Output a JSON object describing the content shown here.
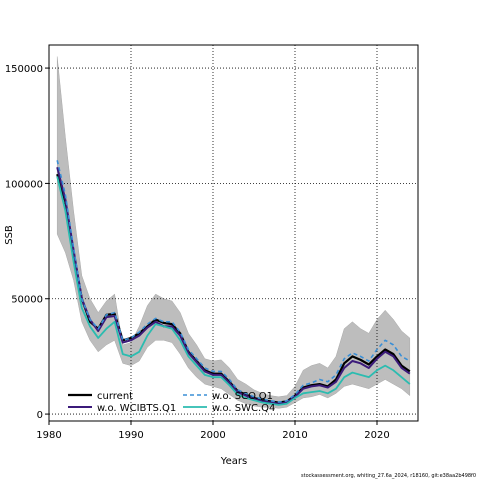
{
  "chart_data": {
    "type": "line",
    "xlabel": "Years",
    "ylabel": "SSB",
    "xlim": [
      1980,
      2025
    ],
    "ylim": [
      -3000,
      160000
    ],
    "x_ticks": [
      1980,
      1990,
      2000,
      2010,
      2020
    ],
    "y_ticks": [
      0,
      50000,
      100000,
      150000
    ],
    "y_tick_labels": [
      "0",
      "50000",
      "100000",
      "150000"
    ],
    "grid": "dotted",
    "legend_position": "bottom-left",
    "footnote": "stockassessment.org, whiting_27.6a_2024, r18160, git:e38aa2b498f0",
    "x": [
      1981,
      1982,
      1983,
      1984,
      1985,
      1986,
      1987,
      1988,
      1989,
      1990,
      1991,
      1992,
      1993,
      1994,
      1995,
      1996,
      1997,
      1998,
      1999,
      2000,
      2001,
      2002,
      2003,
      2004,
      2005,
      2006,
      2007,
      2008,
      2009,
      2010,
      2011,
      2012,
      2013,
      2014,
      2015,
      2016,
      2017,
      2018,
      2019,
      2020,
      2021,
      2022,
      2023,
      2024
    ],
    "confidence_band": {
      "color": "#bdbdbd",
      "upper": [
        155000,
        120000,
        88000,
        60000,
        50000,
        44000,
        49000,
        52000,
        30000,
        31000,
        38000,
        47000,
        52000,
        50000,
        49000,
        44000,
        35000,
        30000,
        24000,
        23000,
        23500,
        20000,
        15000,
        13000,
        10500,
        9000,
        8000,
        7500,
        8000,
        12000,
        19000,
        21000,
        22000,
        20000,
        25000,
        37000,
        40000,
        37000,
        35000,
        41000,
        45000,
        41000,
        36000,
        33000
      ],
      "lower": [
        78000,
        70000,
        58000,
        40000,
        32000,
        27000,
        30000,
        32000,
        22000,
        21000,
        23000,
        29000,
        32000,
        32000,
        31000,
        26000,
        20000,
        16000,
        13000,
        12000,
        11000,
        8500,
        6000,
        4500,
        3500,
        3000,
        3000,
        2500,
        3000,
        5000,
        7000,
        7500,
        8500,
        7000,
        9000,
        12000,
        13000,
        12000,
        11000,
        13000,
        15000,
        13000,
        11000,
        8000
      ]
    },
    "series": [
      {
        "name": "current",
        "color": "#000000",
        "style": "solid",
        "width": 2.2,
        "values": [
          104000,
          92000,
          70000,
          50000,
          40000,
          37000,
          43000,
          43500,
          32000,
          33000,
          35000,
          38000,
          41000,
          39500,
          39000,
          35000,
          27000,
          23000,
          19000,
          17500,
          17500,
          14000,
          10000,
          8500,
          7000,
          6000,
          5500,
          5000,
          5500,
          8000,
          11500,
          12500,
          13000,
          12000,
          15000,
          22000,
          25000,
          23500,
          21500,
          25000,
          28000,
          26000,
          21000,
          18500
        ]
      },
      {
        "name": "w.o. WCIBTS.Q1",
        "color": "#3b1a7a",
        "style": "solid",
        "width": 2.0,
        "values": [
          107000,
          93000,
          71000,
          50000,
          41000,
          36000,
          42000,
          42500,
          31000,
          32000,
          34000,
          37500,
          40000,
          38000,
          38000,
          34000,
          26500,
          22500,
          18500,
          17000,
          17000,
          13500,
          9500,
          8000,
          6500,
          5500,
          5000,
          4500,
          5000,
          7500,
          11000,
          12000,
          12500,
          11500,
          14000,
          20000,
          23000,
          22000,
          20000,
          24000,
          27000,
          25000,
          20000,
          17500
        ]
      },
      {
        "name": "w.o. SCO.Q1",
        "color": "#3a8fd6",
        "style": "dashed",
        "width": 1.6,
        "values": [
          110000,
          95000,
          72000,
          50000,
          41000,
          37000,
          43000,
          44000,
          32000,
          33000,
          35500,
          39000,
          41500,
          40000,
          40000,
          35500,
          28000,
          24000,
          20000,
          18500,
          18500,
          15000,
          10500,
          9000,
          7500,
          6500,
          5800,
          5200,
          5700,
          8500,
          12500,
          13500,
          15000,
          14000,
          17000,
          24000,
          26500,
          25000,
          23000,
          28000,
          32000,
          30000,
          25000,
          23000
        ]
      },
      {
        "name": "w.o. SWC.Q4",
        "color": "#2bbcb0",
        "style": "solid",
        "width": 1.8,
        "values": [
          103000,
          88000,
          66000,
          46000,
          38000,
          33000,
          37000,
          40000,
          26000,
          25000,
          27000,
          34000,
          39000,
          38000,
          37000,
          32000,
          25000,
          21000,
          17000,
          16000,
          16000,
          12500,
          8500,
          7000,
          6000,
          5000,
          4500,
          4000,
          4500,
          7000,
          9000,
          9500,
          10000,
          9000,
          11000,
          16000,
          18000,
          17000,
          16000,
          19000,
          21000,
          19000,
          16000,
          13000
        ]
      }
    ]
  },
  "legend": {
    "items": [
      {
        "label": "current"
      },
      {
        "label": "w.o. WCIBTS.Q1"
      },
      {
        "label": "w.o. SCO.Q1"
      },
      {
        "label": "w.o. SWC.Q4"
      }
    ]
  }
}
